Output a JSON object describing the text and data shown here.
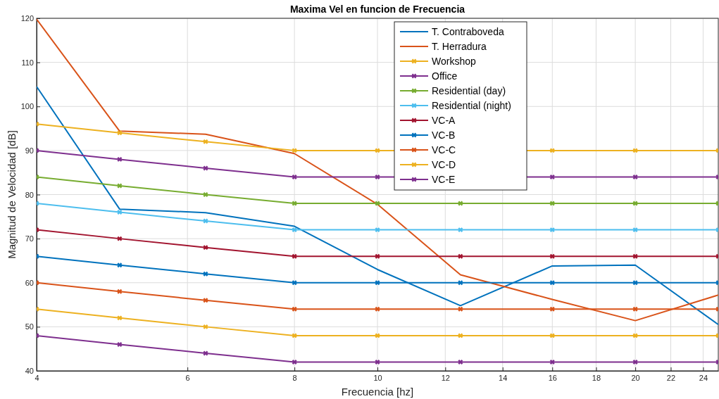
{
  "chart_data": {
    "type": "line",
    "title": "Maxima Vel en funcion de Frecuencia",
    "xlabel": "Frecuencia [hz]",
    "ylabel": "Magnitud de Velocidad [dB]",
    "x": [
      4,
      5,
      6.3,
      8,
      10,
      12.5,
      16,
      20,
      25
    ],
    "series": [
      {
        "name": "T. Contraboveda",
        "color": "#0072bd",
        "marker": "none",
        "values": [
          104.5,
          76.7,
          75.9,
          72.8,
          63,
          54.8,
          63.8,
          64,
          50.5
        ]
      },
      {
        "name": "T. Herradura",
        "color": "#d95319",
        "marker": "none",
        "values": [
          119.8,
          94.4,
          93.7,
          89.3,
          77.8,
          61.8,
          56.2,
          51.4,
          57.2
        ]
      },
      {
        "name": "Workshop",
        "color": "#edb120",
        "marker": "cross",
        "values": [
          96,
          94,
          92,
          90,
          90,
          null,
          90,
          90,
          90
        ]
      },
      {
        "name": "Office",
        "color": "#7e2f8e",
        "marker": "cross",
        "values": [
          90,
          88,
          86,
          84,
          84,
          null,
          84,
          84,
          84
        ]
      },
      {
        "name": "Residential (day)",
        "color": "#77ac30",
        "marker": "cross",
        "values": [
          84,
          82,
          80,
          78,
          78,
          78,
          78,
          78,
          78
        ]
      },
      {
        "name": "Residential (night)",
        "color": "#4dbeee",
        "marker": "cross",
        "values": [
          78,
          76,
          74,
          72,
          72,
          72,
          72,
          72,
          72
        ]
      },
      {
        "name": "VC-A",
        "color": "#a2142f",
        "marker": "cross",
        "values": [
          72,
          70,
          68,
          66,
          66,
          66,
          66,
          66,
          66
        ]
      },
      {
        "name": "VC-B",
        "color": "#0072bd",
        "marker": "cross",
        "values": [
          66,
          64,
          62,
          60,
          60,
          60,
          60,
          60,
          60
        ]
      },
      {
        "name": "VC-C",
        "color": "#d95319",
        "marker": "cross",
        "values": [
          60,
          58,
          56,
          54,
          54,
          54,
          54,
          54,
          54
        ]
      },
      {
        "name": "VC-D",
        "color": "#edb120",
        "marker": "cross",
        "values": [
          54,
          52,
          50,
          48,
          48,
          48,
          48,
          48,
          48
        ]
      },
      {
        "name": "VC-E",
        "color": "#7e2f8e",
        "marker": "cross",
        "values": [
          48,
          46,
          44,
          42,
          42,
          42,
          42,
          42,
          42
        ]
      }
    ],
    "log": "x",
    "xlim": [
      4,
      25
    ],
    "xticks": [
      4,
      6,
      8,
      10,
      12,
      14,
      16,
      18,
      20,
      22,
      24
    ],
    "ylim": [
      40,
      120
    ],
    "yticks": [
      40,
      50,
      60,
      70,
      80,
      90,
      100,
      110,
      120
    ],
    "grid": true,
    "legend": "top right",
    "line_style": "solid"
  }
}
